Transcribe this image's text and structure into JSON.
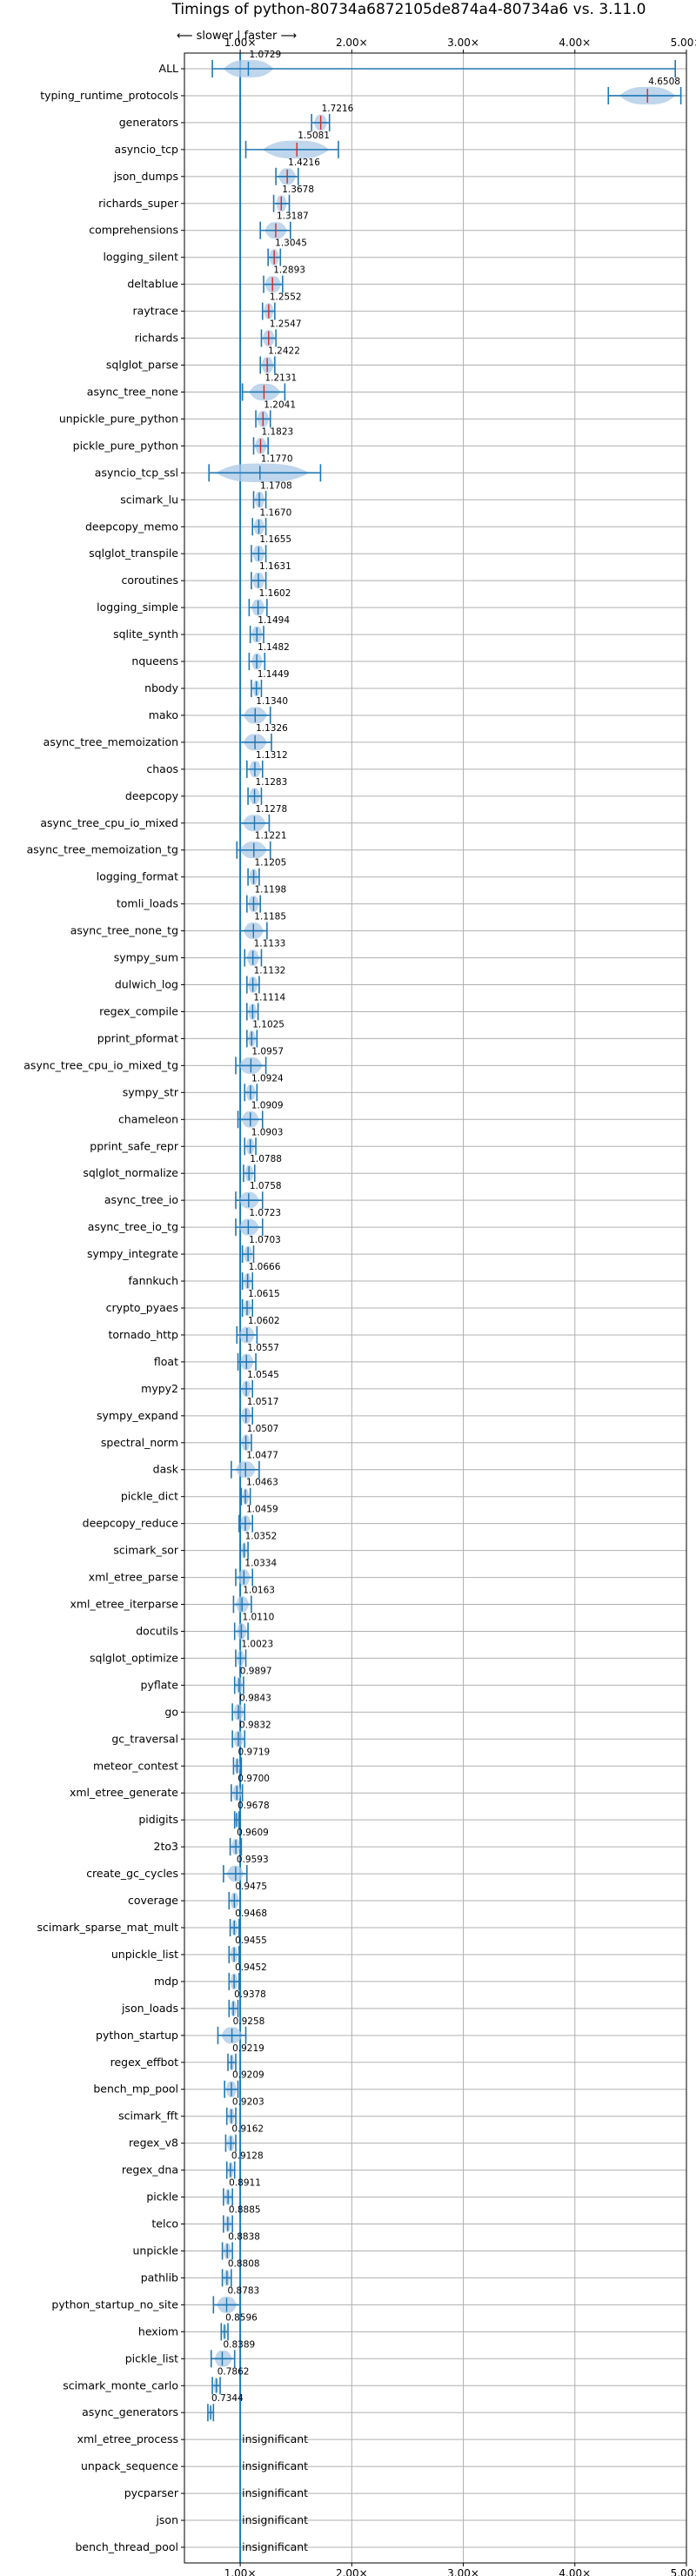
{
  "chart_data": {
    "type": "violin",
    "title": "Timings of python-80734a6872105de874a4-80734a6 vs. 3.11.0",
    "direction_hint": "⟵ slower | faster ⟶",
    "xlim": [
      0.5,
      5.0
    ],
    "x_ticks": [
      1,
      2,
      3,
      4,
      5
    ],
    "x_tick_labels": [
      "1.00×",
      "2.00×",
      "3.00×",
      "4.00×",
      "5.00×"
    ],
    "reference_line": 1.0,
    "grid": true,
    "insignificant_label": "insignificant",
    "benchmarks": [
      {
        "name": "ALL",
        "value": 1.0729,
        "err": [
          0.75,
          4.9
        ],
        "spread": [
          0.85,
          1.3
        ]
      },
      {
        "name": "typing_runtime_protocols",
        "value": 4.6508,
        "err": [
          4.3,
          4.95
        ],
        "spread": [
          4.4,
          4.9
        ]
      },
      {
        "name": "generators",
        "value": 1.7216,
        "err": [
          1.64,
          1.8
        ],
        "spread": [
          1.66,
          1.78
        ]
      },
      {
        "name": "asyncio_tcp",
        "value": 1.5081,
        "err": [
          1.05,
          1.88
        ],
        "spread": [
          1.2,
          1.8
        ]
      },
      {
        "name": "json_dumps",
        "value": 1.4216,
        "err": [
          1.32,
          1.52
        ],
        "spread": [
          1.34,
          1.5
        ]
      },
      {
        "name": "richards_super",
        "value": 1.3678,
        "err": [
          1.3,
          1.44
        ],
        "spread": [
          1.32,
          1.42
        ]
      },
      {
        "name": "comprehensions",
        "value": 1.3187,
        "err": [
          1.18,
          1.45
        ],
        "spread": [
          1.22,
          1.42
        ]
      },
      {
        "name": "logging_silent",
        "value": 1.3045,
        "err": [
          1.25,
          1.36
        ],
        "spread": [
          1.26,
          1.35
        ]
      },
      {
        "name": "deltablue",
        "value": 1.2893,
        "err": [
          1.21,
          1.38
        ],
        "spread": [
          1.22,
          1.37
        ]
      },
      {
        "name": "raytrace",
        "value": 1.2552,
        "err": [
          1.2,
          1.31
        ],
        "spread": [
          1.21,
          1.3
        ]
      },
      {
        "name": "richards",
        "value": 1.2547,
        "err": [
          1.19,
          1.32
        ],
        "spread": [
          1.2,
          1.31
        ]
      },
      {
        "name": "sqlglot_parse",
        "value": 1.2422,
        "err": [
          1.18,
          1.31
        ],
        "spread": [
          1.19,
          1.3
        ]
      },
      {
        "name": "async_tree_none",
        "value": 1.2131,
        "err": [
          1.02,
          1.4
        ],
        "spread": [
          1.08,
          1.36
        ]
      },
      {
        "name": "unpickle_pure_python",
        "value": 1.2041,
        "err": [
          1.14,
          1.27
        ],
        "spread": [
          1.15,
          1.26
        ]
      },
      {
        "name": "pickle_pure_python",
        "value": 1.1823,
        "err": [
          1.12,
          1.25
        ],
        "spread": [
          1.13,
          1.24
        ]
      },
      {
        "name": "asyncio_tcp_ssl",
        "value": 1.177,
        "err": [
          0.72,
          1.72
        ],
        "spread": [
          0.78,
          1.62
        ]
      },
      {
        "name": "scimark_lu",
        "value": 1.1708,
        "err": [
          1.12,
          1.23
        ],
        "spread": [
          1.13,
          1.22
        ]
      },
      {
        "name": "deepcopy_memo",
        "value": 1.167,
        "err": [
          1.11,
          1.23
        ],
        "spread": [
          1.12,
          1.22
        ]
      },
      {
        "name": "sqlglot_transpile",
        "value": 1.1655,
        "err": [
          1.1,
          1.23
        ],
        "spread": [
          1.11,
          1.22
        ]
      },
      {
        "name": "coroutines",
        "value": 1.1631,
        "err": [
          1.1,
          1.23
        ],
        "spread": [
          1.11,
          1.22
        ]
      },
      {
        "name": "logging_simple",
        "value": 1.1602,
        "err": [
          1.08,
          1.24
        ],
        "spread": [
          1.1,
          1.22
        ]
      },
      {
        "name": "sqlite_synth",
        "value": 1.1494,
        "err": [
          1.09,
          1.21
        ],
        "spread": [
          1.1,
          1.2
        ]
      },
      {
        "name": "nqueens",
        "value": 1.1482,
        "err": [
          1.08,
          1.22
        ],
        "spread": [
          1.1,
          1.2
        ]
      },
      {
        "name": "nbody",
        "value": 1.1449,
        "err": [
          1.1,
          1.19
        ],
        "spread": [
          1.11,
          1.18
        ]
      },
      {
        "name": "mako",
        "value": 1.134,
        "err": [
          1.0,
          1.27
        ],
        "spread": [
          1.03,
          1.24
        ]
      },
      {
        "name": "async_tree_memoization",
        "value": 1.1326,
        "err": [
          1.0,
          1.28
        ],
        "spread": [
          1.03,
          1.24
        ]
      },
      {
        "name": "chaos",
        "value": 1.1312,
        "err": [
          1.06,
          1.2
        ],
        "spread": [
          1.08,
          1.19
        ]
      },
      {
        "name": "deepcopy",
        "value": 1.1283,
        "err": [
          1.07,
          1.19
        ],
        "spread": [
          1.08,
          1.18
        ]
      },
      {
        "name": "async_tree_cpu_io_mixed",
        "value": 1.1278,
        "err": [
          1.0,
          1.26
        ],
        "spread": [
          1.02,
          1.23
        ]
      },
      {
        "name": "async_tree_memoization_tg",
        "value": 1.1221,
        "err": [
          0.97,
          1.27
        ],
        "spread": [
          1.0,
          1.24
        ]
      },
      {
        "name": "logging_format",
        "value": 1.1205,
        "err": [
          1.07,
          1.17
        ],
        "spread": [
          1.08,
          1.16
        ]
      },
      {
        "name": "tomli_loads",
        "value": 1.1198,
        "err": [
          1.06,
          1.18
        ],
        "spread": [
          1.07,
          1.17
        ]
      },
      {
        "name": "async_tree_none_tg",
        "value": 1.1185,
        "err": [
          1.0,
          1.24
        ],
        "spread": [
          1.03,
          1.21
        ]
      },
      {
        "name": "sympy_sum",
        "value": 1.1133,
        "err": [
          1.04,
          1.19
        ],
        "spread": [
          1.06,
          1.17
        ]
      },
      {
        "name": "dulwich_log",
        "value": 1.1132,
        "err": [
          1.06,
          1.17
        ],
        "spread": [
          1.07,
          1.16
        ]
      },
      {
        "name": "regex_compile",
        "value": 1.1114,
        "err": [
          1.06,
          1.16
        ],
        "spread": [
          1.07,
          1.15
        ]
      },
      {
        "name": "pprint_pformat",
        "value": 1.1025,
        "err": [
          1.06,
          1.15
        ],
        "spread": [
          1.07,
          1.14
        ]
      },
      {
        "name": "async_tree_cpu_io_mixed_tg",
        "value": 1.0957,
        "err": [
          0.96,
          1.23
        ],
        "spread": [
          0.99,
          1.2
        ]
      },
      {
        "name": "sympy_str",
        "value": 1.0924,
        "err": [
          1.04,
          1.15
        ],
        "spread": [
          1.05,
          1.14
        ]
      },
      {
        "name": "chameleon",
        "value": 1.0909,
        "err": [
          0.98,
          1.2
        ],
        "spread": [
          1.01,
          1.17
        ]
      },
      {
        "name": "pprint_safe_repr",
        "value": 1.0903,
        "err": [
          1.04,
          1.14
        ],
        "spread": [
          1.05,
          1.13
        ]
      },
      {
        "name": "sqlglot_normalize",
        "value": 1.0788,
        "err": [
          1.03,
          1.13
        ],
        "spread": [
          1.04,
          1.12
        ]
      },
      {
        "name": "async_tree_io",
        "value": 1.0758,
        "err": [
          0.96,
          1.2
        ],
        "spread": [
          0.99,
          1.17
        ]
      },
      {
        "name": "async_tree_io_tg",
        "value": 1.0723,
        "err": [
          0.96,
          1.2
        ],
        "spread": [
          0.99,
          1.17
        ]
      },
      {
        "name": "sympy_integrate",
        "value": 1.0703,
        "err": [
          1.02,
          1.12
        ],
        "spread": [
          1.03,
          1.11
        ]
      },
      {
        "name": "fannkuch",
        "value": 1.0666,
        "err": [
          1.02,
          1.11
        ],
        "spread": [
          1.03,
          1.1
        ]
      },
      {
        "name": "crypto_pyaes",
        "value": 1.0615,
        "err": [
          1.02,
          1.11
        ],
        "spread": [
          1.03,
          1.1
        ]
      },
      {
        "name": "tornado_http",
        "value": 1.0602,
        "err": [
          0.97,
          1.15
        ],
        "spread": [
          0.99,
          1.13
        ]
      },
      {
        "name": "float",
        "value": 1.0557,
        "err": [
          0.98,
          1.14
        ],
        "spread": [
          1.0,
          1.12
        ]
      },
      {
        "name": "mypy2",
        "value": 1.0545,
        "err": [
          1.0,
          1.11
        ],
        "spread": [
          1.01,
          1.1
        ]
      },
      {
        "name": "sympy_expand",
        "value": 1.0517,
        "err": [
          1.0,
          1.11
        ],
        "spread": [
          1.01,
          1.1
        ]
      },
      {
        "name": "spectral_norm",
        "value": 1.0507,
        "err": [
          1.0,
          1.1
        ],
        "spread": [
          1.01,
          1.09
        ]
      },
      {
        "name": "dask",
        "value": 1.0477,
        "err": [
          0.92,
          1.17
        ],
        "spread": [
          0.96,
          1.14
        ]
      },
      {
        "name": "pickle_dict",
        "value": 1.0463,
        "err": [
          1.01,
          1.09
        ],
        "spread": [
          1.02,
          1.08
        ]
      },
      {
        "name": "deepcopy_reduce",
        "value": 1.0459,
        "err": [
          0.99,
          1.11
        ],
        "spread": [
          1.0,
          1.1
        ]
      },
      {
        "name": "scimark_sor",
        "value": 1.0352,
        "err": [
          1.0,
          1.07
        ],
        "spread": [
          1.01,
          1.06
        ]
      },
      {
        "name": "xml_etree_parse",
        "value": 1.0334,
        "err": [
          0.96,
          1.11
        ],
        "spread": [
          0.98,
          1.09
        ]
      },
      {
        "name": "xml_etree_iterparse",
        "value": 1.0163,
        "err": [
          0.94,
          1.1
        ],
        "spread": [
          0.96,
          1.08
        ]
      },
      {
        "name": "docutils",
        "value": 1.011,
        "err": [
          0.95,
          1.07
        ],
        "spread": [
          0.97,
          1.06
        ]
      },
      {
        "name": "sqlglot_optimize",
        "value": 1.0023,
        "err": [
          0.96,
          1.05
        ],
        "spread": [
          0.97,
          1.04
        ]
      },
      {
        "name": "pyflate",
        "value": 0.9897,
        "err": [
          0.95,
          1.03
        ],
        "spread": [
          0.96,
          1.02
        ]
      },
      {
        "name": "go",
        "value": 0.9843,
        "err": [
          0.93,
          1.04
        ],
        "spread": [
          0.94,
          1.03
        ]
      },
      {
        "name": "gc_traversal",
        "value": 0.9832,
        "err": [
          0.93,
          1.04
        ],
        "spread": [
          0.94,
          1.03
        ]
      },
      {
        "name": "meteor_contest",
        "value": 0.9719,
        "err": [
          0.94,
          1.01
        ],
        "spread": [
          0.95,
          1.0
        ]
      },
      {
        "name": "xml_etree_generate",
        "value": 0.97,
        "err": [
          0.92,
          1.02
        ],
        "spread": [
          0.93,
          1.01
        ]
      },
      {
        "name": "pidigits",
        "value": 0.9678,
        "err": [
          0.95,
          0.99
        ],
        "spread": [
          0.955,
          0.985
        ]
      },
      {
        "name": "2to3",
        "value": 0.9609,
        "err": [
          0.91,
          1.01
        ],
        "spread": [
          0.92,
          1.0
        ]
      },
      {
        "name": "create_gc_cycles",
        "value": 0.9593,
        "err": [
          0.85,
          1.06
        ],
        "spread": [
          0.88,
          1.03
        ]
      },
      {
        "name": "coverage",
        "value": 0.9475,
        "err": [
          0.9,
          1.0
        ],
        "spread": [
          0.91,
          0.99
        ]
      },
      {
        "name": "scimark_sparse_mat_mult",
        "value": 0.9468,
        "err": [
          0.91,
          0.99
        ],
        "spread": [
          0.92,
          0.98
        ]
      },
      {
        "name": "unpickle_list",
        "value": 0.9455,
        "err": [
          0.9,
          0.99
        ],
        "spread": [
          0.91,
          0.98
        ]
      },
      {
        "name": "mdp",
        "value": 0.9452,
        "err": [
          0.9,
          0.99
        ],
        "spread": [
          0.91,
          0.98
        ]
      },
      {
        "name": "json_loads",
        "value": 0.9378,
        "err": [
          0.9,
          0.98
        ],
        "spread": [
          0.91,
          0.97
        ]
      },
      {
        "name": "python_startup",
        "value": 0.9258,
        "err": [
          0.8,
          1.05
        ],
        "spread": [
          0.83,
          1.02
        ]
      },
      {
        "name": "regex_effbot",
        "value": 0.9219,
        "err": [
          0.89,
          0.96
        ],
        "spread": [
          0.9,
          0.95
        ]
      },
      {
        "name": "bench_mp_pool",
        "value": 0.9209,
        "err": [
          0.86,
          0.98
        ],
        "spread": [
          0.87,
          0.97
        ]
      },
      {
        "name": "scimark_fft",
        "value": 0.9203,
        "err": [
          0.88,
          0.96
        ],
        "spread": [
          0.89,
          0.95
        ]
      },
      {
        "name": "regex_v8",
        "value": 0.9162,
        "err": [
          0.87,
          0.96
        ],
        "spread": [
          0.88,
          0.95
        ]
      },
      {
        "name": "regex_dna",
        "value": 0.9128,
        "err": [
          0.88,
          0.95
        ],
        "spread": [
          0.89,
          0.94
        ]
      },
      {
        "name": "pickle",
        "value": 0.8911,
        "err": [
          0.85,
          0.93
        ],
        "spread": [
          0.86,
          0.92
        ]
      },
      {
        "name": "telco",
        "value": 0.8885,
        "err": [
          0.85,
          0.93
        ],
        "spread": [
          0.86,
          0.92
        ]
      },
      {
        "name": "unpickle",
        "value": 0.8838,
        "err": [
          0.84,
          0.93
        ],
        "spread": [
          0.85,
          0.92
        ]
      },
      {
        "name": "pathlib",
        "value": 0.8808,
        "err": [
          0.84,
          0.92
        ],
        "spread": [
          0.85,
          0.91
        ]
      },
      {
        "name": "python_startup_no_site",
        "value": 0.8783,
        "err": [
          0.76,
          1.0
        ],
        "spread": [
          0.79,
          0.97
        ]
      },
      {
        "name": "hexiom",
        "value": 0.8596,
        "err": [
          0.83,
          0.89
        ],
        "spread": [
          0.84,
          0.88
        ]
      },
      {
        "name": "pickle_list",
        "value": 0.8389,
        "err": [
          0.74,
          0.95
        ],
        "spread": [
          0.77,
          0.93
        ]
      },
      {
        "name": "scimark_monte_carlo",
        "value": 0.7862,
        "err": [
          0.75,
          0.82
        ],
        "spread": [
          0.76,
          0.81
        ]
      },
      {
        "name": "async_generators",
        "value": 0.7344,
        "err": [
          0.71,
          0.76
        ],
        "spread": [
          0.72,
          0.75
        ]
      },
      {
        "name": "xml_etree_process",
        "value": null,
        "insignificant": true
      },
      {
        "name": "unpack_sequence",
        "value": null,
        "insignificant": true
      },
      {
        "name": "pycparser",
        "value": null,
        "insignificant": true
      },
      {
        "name": "json",
        "value": null,
        "insignificant": true
      },
      {
        "name": "bench_thread_pool",
        "value": null,
        "insignificant": true
      }
    ]
  },
  "colors": {
    "line": "#1f77b4",
    "fill": "#a9c8e6",
    "median": "#d62728",
    "grid": "#b0b0b0",
    "axis": "#000000"
  }
}
